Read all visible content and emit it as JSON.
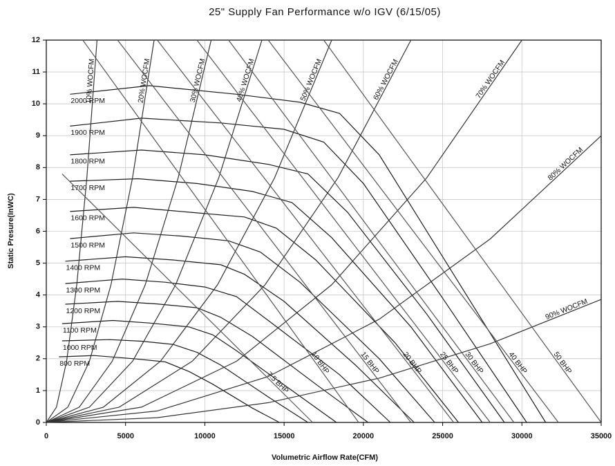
{
  "chart_data": {
    "type": "line",
    "title": "25\" Supply Fan Performance w/o IGV (6/15/05)",
    "x_label": "Volumetric Airflow Rate(CFM)",
    "y_label": "Static Presure(InWC)",
    "xlim": [
      0,
      35000
    ],
    "ylim": [
      0,
      12
    ],
    "xticks": [
      0,
      5000,
      10000,
      15000,
      20000,
      25000,
      30000,
      35000
    ],
    "yticks": [
      0,
      1,
      2,
      3,
      4,
      5,
      6,
      7,
      8,
      9,
      10,
      11,
      12
    ],
    "grid": true,
    "series": [
      {
        "name": "2000 RPM",
        "color": "#1a1a1a",
        "x": [
          1500,
          6500,
          12000,
          16000,
          18500,
          21000,
          26000,
          31500
        ],
        "y": [
          10.3,
          10.57,
          10.3,
          10.05,
          9.7,
          8.4,
          4.4,
          0
        ]
      },
      {
        "name": "1900 RPM",
        "color": "#1a1a1a",
        "x": [
          1500,
          6000,
          11000,
          15000,
          17500,
          20000,
          25000,
          30300
        ],
        "y": [
          9.3,
          9.55,
          9.4,
          9.2,
          8.8,
          7.5,
          3.9,
          0
        ]
      },
      {
        "name": "1800 RPM",
        "color": "#1a1a1a",
        "x": [
          1500,
          6000,
          10000,
          14000,
          16500,
          19000,
          24000,
          28900
        ],
        "y": [
          8.4,
          8.55,
          8.4,
          8.1,
          7.8,
          6.6,
          3.4,
          0
        ]
      },
      {
        "name": "1700 RPM",
        "color": "#1a1a1a",
        "x": [
          1500,
          5800,
          9500,
          13000,
          15500,
          18000,
          23000,
          27500
        ],
        "y": [
          7.57,
          7.65,
          7.5,
          7.25,
          6.9,
          5.8,
          3.0,
          0
        ]
      },
      {
        "name": "1600 RPM",
        "color": "#1a1a1a",
        "x": [
          1500,
          5500,
          9000,
          12500,
          14500,
          17000,
          22000,
          26000
        ],
        "y": [
          6.62,
          6.75,
          6.6,
          6.45,
          6.1,
          5.1,
          2.5,
          0
        ]
      },
      {
        "name": "1500 RPM",
        "color": "#1a1a1a",
        "x": [
          1500,
          5500,
          8500,
          11500,
          13500,
          16000,
          21000,
          24500
        ],
        "y": [
          5.77,
          5.95,
          5.85,
          5.7,
          5.35,
          4.4,
          2.0,
          0
        ]
      },
      {
        "name": "1400 RPM",
        "color": "#1a1a1a",
        "x": [
          1200,
          5000,
          8000,
          11000,
          12500,
          15000,
          19500,
          23200
        ],
        "y": [
          5.06,
          5.2,
          5.1,
          4.95,
          4.65,
          3.8,
          1.8,
          0
        ]
      },
      {
        "name": "1300 RPM",
        "color": "#1a1a1a",
        "x": [
          1200,
          4800,
          7500,
          10000,
          12000,
          14000,
          18500,
          21700
        ],
        "y": [
          4.36,
          4.5,
          4.4,
          4.25,
          3.95,
          3.2,
          1.5,
          0
        ]
      },
      {
        "name": "1200 RPM",
        "color": "#1a1a1a",
        "x": [
          1200,
          4500,
          7000,
          9500,
          11000,
          13000,
          17000,
          20300
        ],
        "y": [
          3.71,
          3.8,
          3.72,
          3.6,
          3.3,
          2.7,
          1.2,
          0
        ]
      },
      {
        "name": "1100 RPM",
        "color": "#1a1a1a",
        "x": [
          1000,
          4200,
          6500,
          9000,
          10500,
          12000,
          15500,
          18300
        ],
        "y": [
          3.1,
          3.2,
          3.12,
          3.0,
          2.75,
          2.25,
          1.0,
          0
        ]
      },
      {
        "name": "1000 RPM",
        "color": "#1a1a1a",
        "x": [
          1000,
          4000,
          6000,
          8000,
          9500,
          11000,
          14000,
          16500
        ],
        "y": [
          2.56,
          2.6,
          2.55,
          2.45,
          2.2,
          1.8,
          0.8,
          0
        ]
      },
      {
        "name": "800 RPM",
        "color": "#1a1a1a",
        "x": [
          800,
          3000,
          5500,
          7500,
          9000,
          10500,
          13000,
          14700
        ],
        "y": [
          2.06,
          2.1,
          2.0,
          1.9,
          1.6,
          1.2,
          0.45,
          0
        ]
      },
      {
        "name": "10% WOCFM",
        "color": "#333333",
        "x": [
          0,
          640,
          1280,
          1920,
          2560,
          3200
        ],
        "y": [
          0,
          0.48,
          1.92,
          4.32,
          7.68,
          12
        ]
      },
      {
        "name": "20% WOCFM",
        "color": "#333333",
        "x": [
          0,
          1360,
          2720,
          4080,
          5440,
          6800
        ],
        "y": [
          0,
          0.48,
          1.92,
          4.32,
          7.68,
          12
        ]
      },
      {
        "name": "30% WOCFM",
        "color": "#333333",
        "x": [
          0,
          2080,
          4160,
          6240,
          8320,
          10400
        ],
        "y": [
          0,
          0.48,
          1.92,
          4.32,
          7.68,
          12
        ]
      },
      {
        "name": "40% WOCFM",
        "color": "#333333",
        "x": [
          0,
          2720,
          5440,
          8160,
          10880,
          13600
        ],
        "y": [
          0,
          0.48,
          1.92,
          4.32,
          7.68,
          12
        ]
      },
      {
        "name": "50% WOCFM",
        "color": "#333333",
        "x": [
          0,
          3600,
          7200,
          10800,
          14400,
          18000
        ],
        "y": [
          0,
          0.48,
          1.92,
          4.32,
          7.68,
          12
        ]
      },
      {
        "name": "60% WOCFM",
        "color": "#333333",
        "x": [
          0,
          4600,
          9200,
          13800,
          18400,
          23000
        ],
        "y": [
          0,
          0.48,
          1.92,
          4.32,
          7.68,
          12
        ]
      },
      {
        "name": "70% WOCFM",
        "color": "#333333",
        "x": [
          0,
          6000,
          12000,
          18000,
          24000,
          30000
        ],
        "y": [
          0,
          0.48,
          1.92,
          4.32,
          7.68,
          12
        ]
      },
      {
        "name": "80% WOCFM",
        "color": "#333333",
        "x": [
          0,
          7000,
          14000,
          21000,
          28000,
          35000
        ],
        "y": [
          0,
          0.36,
          1.44,
          3.24,
          5.76,
          9
        ]
      },
      {
        "name": "90% WOCFM",
        "color": "#333333",
        "x": [
          0,
          7000,
          14000,
          21000,
          28000,
          35000
        ],
        "y": [
          0,
          0.15,
          0.62,
          1.39,
          2.47,
          3.86
        ]
      },
      {
        "name": "7.5 BHP",
        "color": "#555555",
        "x": [
          1000,
          16800
        ],
        "y": [
          7.8,
          0
        ]
      },
      {
        "name": "10 BHP",
        "color": "#555555",
        "x": [
          2300,
          19700
        ],
        "y": [
          12,
          0
        ]
      },
      {
        "name": "15 BHP",
        "color": "#555555",
        "x": [
          4500,
          23000
        ],
        "y": [
          12,
          0
        ]
      },
      {
        "name": "20 BHP",
        "color": "#555555",
        "x": [
          7000,
          25700
        ],
        "y": [
          12,
          0
        ]
      },
      {
        "name": "25 BHP",
        "color": "#555555",
        "x": [
          9500,
          28000
        ],
        "y": [
          12,
          0
        ]
      },
      {
        "name": "30 BHP",
        "color": "#555555",
        "x": [
          11500,
          29500
        ],
        "y": [
          12,
          0
        ]
      },
      {
        "name": "40 BHP",
        "color": "#555555",
        "x": [
          14000,
          32300
        ],
        "y": [
          12,
          0
        ]
      },
      {
        "name": "50 BHP",
        "color": "#555555",
        "x": [
          17500,
          35000
        ],
        "y": [
          12,
          0
        ]
      }
    ]
  }
}
